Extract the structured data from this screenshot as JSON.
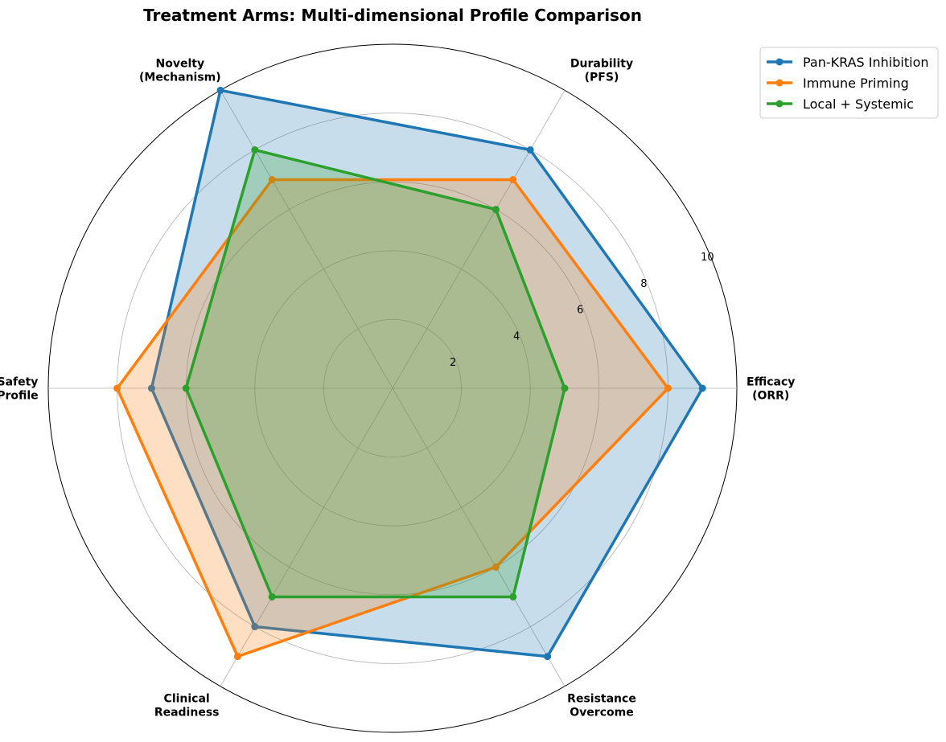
{
  "chart_data": {
    "type": "radar",
    "title": "Treatment Arms: Multi-dimensional Profile Comparison",
    "axes": [
      [
        "Efficacy",
        "(ORR)"
      ],
      [
        "Durability",
        "(PFS)"
      ],
      [
        "Novelty",
        "(Mechanism)"
      ],
      [
        "Safety",
        "Profile"
      ],
      [
        "Clinical",
        "Readiness"
      ],
      [
        "Resistance",
        "Overcome"
      ]
    ],
    "rlim": [
      0,
      10
    ],
    "rticks": [
      2,
      4,
      6,
      8,
      10
    ],
    "series": [
      {
        "name": "Pan-KRAS Inhibition",
        "color": "#1f77b4",
        "values": [
          9,
          8,
          10,
          7,
          8,
          9
        ]
      },
      {
        "name": "Immune Priming",
        "color": "#ff7f0e",
        "values": [
          8,
          7,
          7,
          8,
          9,
          6
        ]
      },
      {
        "name": "Local + Systemic",
        "color": "#2ca02c",
        "values": [
          5,
          6,
          8,
          6,
          7,
          7
        ]
      }
    ],
    "grid": true,
    "legend_position": "top-right (outside)"
  }
}
